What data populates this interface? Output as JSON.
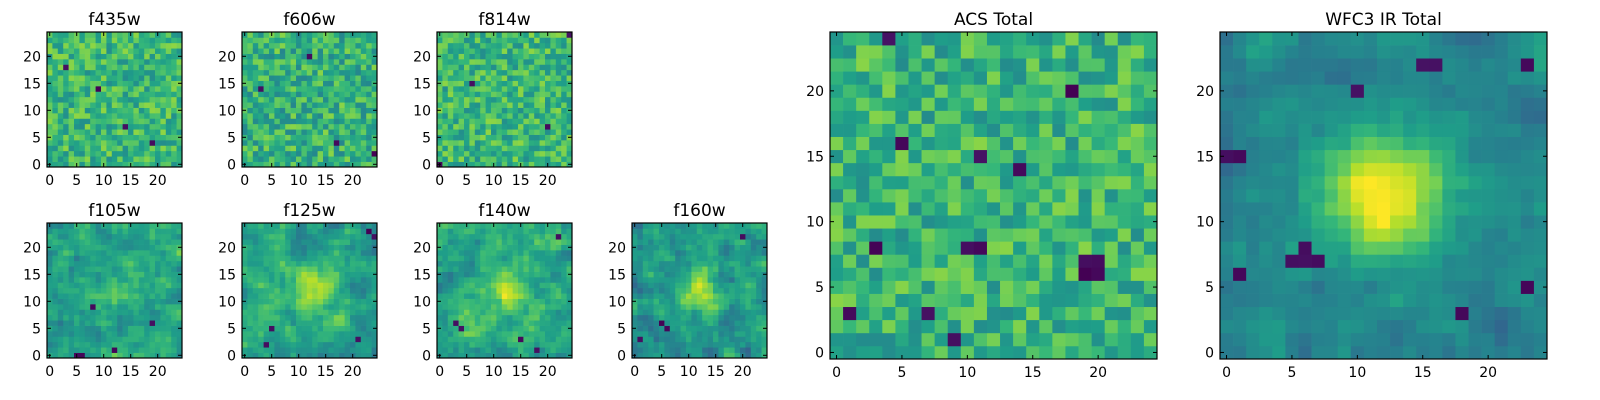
{
  "chart_data": [
    {
      "type": "heatmap",
      "title": "f435w",
      "xlim": [
        -0.5,
        24.5
      ],
      "ylim": [
        -0.5,
        24.5
      ],
      "xticks": [
        0,
        5,
        10,
        15,
        20
      ],
      "yticks": [
        0,
        5,
        10,
        15,
        20
      ],
      "grid": false,
      "texture": "noise",
      "seed": 11,
      "mean": 0.66,
      "spread": 0.17,
      "darkDots": [
        [
          19,
          4
        ],
        [
          14,
          7
        ],
        [
          9,
          14
        ],
        [
          3,
          18
        ]
      ]
    },
    {
      "type": "heatmap",
      "title": "f606w",
      "xlim": [
        -0.5,
        24.5
      ],
      "ylim": [
        -0.5,
        24.5
      ],
      "xticks": [
        0,
        5,
        10,
        15,
        20
      ],
      "yticks": [
        0,
        5,
        10,
        15,
        20
      ],
      "grid": false,
      "texture": "noise",
      "seed": 23,
      "mean": 0.64,
      "spread": 0.18,
      "darkDots": [
        [
          24,
          2
        ],
        [
          17,
          4
        ],
        [
          3,
          14
        ],
        [
          12,
          20
        ]
      ]
    },
    {
      "type": "heatmap",
      "title": "f814w",
      "xlim": [
        -0.5,
        24.5
      ],
      "ylim": [
        -0.5,
        24.5
      ],
      "xticks": [
        0,
        5,
        10,
        15,
        20
      ],
      "yticks": [
        0,
        5,
        10,
        15,
        20
      ],
      "grid": false,
      "texture": "noise",
      "seed": 37,
      "mean": 0.66,
      "spread": 0.17,
      "darkDots": [
        [
          0,
          0
        ],
        [
          20,
          7
        ],
        [
          24,
          24
        ],
        [
          6,
          15
        ]
      ]
    },
    {
      "type": "heatmap",
      "title": "f105w",
      "xlim": [
        -0.5,
        24.5
      ],
      "ylim": [
        -0.5,
        24.5
      ],
      "xticks": [
        0,
        5,
        10,
        15,
        20
      ],
      "yticks": [
        0,
        5,
        10,
        15,
        20
      ],
      "grid": false,
      "texture": "smooth",
      "seed": 41,
      "mean": 0.6,
      "spread": 0.2,
      "blob": [
        13,
        12,
        3,
        0.15
      ],
      "darkDots": [
        [
          5,
          0
        ],
        [
          6,
          0
        ],
        [
          8,
          9
        ],
        [
          12,
          1
        ],
        [
          19,
          6
        ]
      ]
    },
    {
      "type": "heatmap",
      "title": "f125w",
      "xlim": [
        -0.5,
        24.5
      ],
      "ylim": [
        -0.5,
        24.5
      ],
      "xticks": [
        0,
        5,
        10,
        15,
        20
      ],
      "yticks": [
        0,
        5,
        10,
        15,
        20
      ],
      "grid": false,
      "texture": "smooth",
      "seed": 53,
      "mean": 0.58,
      "spread": 0.2,
      "blob": [
        13,
        12,
        3,
        0.3
      ],
      "darkDots": [
        [
          5,
          5
        ],
        [
          4,
          2
        ],
        [
          24,
          22
        ],
        [
          23,
          23
        ],
        [
          21,
          3
        ]
      ]
    },
    {
      "type": "heatmap",
      "title": "f140w",
      "xlim": [
        -0.5,
        24.5
      ],
      "ylim": [
        -0.5,
        24.5
      ],
      "xticks": [
        0,
        5,
        10,
        15,
        20
      ],
      "yticks": [
        0,
        5,
        10,
        15,
        20
      ],
      "grid": false,
      "texture": "smooth",
      "seed": 67,
      "mean": 0.6,
      "spread": 0.2,
      "blob": [
        12,
        12,
        3,
        0.25
      ],
      "darkDots": [
        [
          3,
          6
        ],
        [
          4,
          5
        ],
        [
          15,
          3
        ],
        [
          18,
          1
        ],
        [
          22,
          22
        ]
      ]
    },
    {
      "type": "heatmap",
      "title": "f160w",
      "xlim": [
        -0.5,
        24.5
      ],
      "ylim": [
        -0.5,
        24.5
      ],
      "xticks": [
        0,
        5,
        10,
        15,
        20
      ],
      "yticks": [
        0,
        5,
        10,
        15,
        20
      ],
      "grid": false,
      "texture": "smooth",
      "seed": 79,
      "mean": 0.52,
      "spread": 0.2,
      "blob": [
        12,
        12,
        3,
        0.35
      ],
      "darkDots": [
        [
          5,
          6
        ],
        [
          6,
          5
        ],
        [
          1,
          3
        ],
        [
          20,
          22
        ]
      ]
    },
    {
      "type": "heatmap",
      "title": "ACS Total",
      "xlim": [
        -0.5,
        24.5
      ],
      "ylim": [
        -0.5,
        24.5
      ],
      "xticks": [
        0,
        5,
        10,
        15,
        20
      ],
      "yticks": [
        0,
        5,
        10,
        15,
        20
      ],
      "grid": false,
      "texture": "noise",
      "seed": 97,
      "mean": 0.65,
      "spread": 0.17,
      "darkDots": [
        [
          4,
          24
        ],
        [
          5,
          16
        ],
        [
          11,
          15
        ],
        [
          14,
          14
        ],
        [
          3,
          8
        ],
        [
          10,
          8
        ],
        [
          11,
          8
        ],
        [
          19,
          7
        ],
        [
          20,
          7
        ],
        [
          19,
          6
        ],
        [
          20,
          6
        ],
        [
          1,
          3
        ],
        [
          7,
          3
        ],
        [
          18,
          20
        ],
        [
          9,
          1
        ]
      ]
    },
    {
      "type": "heatmap",
      "title": "WFC3 IR Total",
      "xlim": [
        -0.5,
        24.5
      ],
      "ylim": [
        -0.5,
        24.5
      ],
      "xticks": [
        0,
        5,
        10,
        15,
        20
      ],
      "yticks": [
        0,
        5,
        10,
        15,
        20
      ],
      "grid": false,
      "texture": "smooth",
      "seed": 113,
      "mean": 0.46,
      "spread": 0.13,
      "blob": [
        12,
        12,
        3.4,
        0.55
      ],
      "darkDots": [
        [
          16,
          22
        ],
        [
          15,
          22
        ],
        [
          23,
          22
        ],
        [
          0,
          15
        ],
        [
          1,
          15
        ],
        [
          6,
          8
        ],
        [
          6,
          7
        ],
        [
          7,
          7
        ],
        [
          5,
          7
        ],
        [
          1,
          6
        ],
        [
          10,
          20
        ],
        [
          18,
          3
        ],
        [
          23,
          5
        ]
      ]
    }
  ]
}
